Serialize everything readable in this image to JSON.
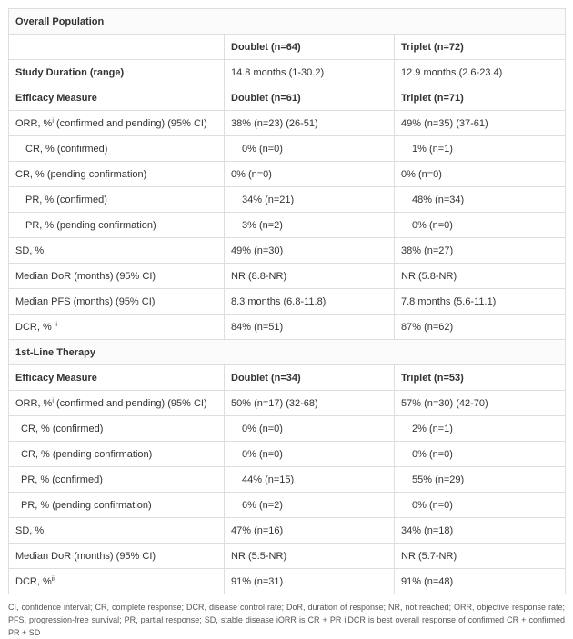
{
  "table": {
    "rows": [
      [
        "Overall Population"
      ],
      [
        "",
        "Doublet (n=64)",
        "Triplet (n=72)"
      ],
      [
        "Study Duration (range)",
        "14.8 months (1-30.2)",
        "12.9 months (2.6-23.4)"
      ],
      [
        "Efficacy Measure",
        "Doublet (n=61)",
        "Triplet (n=71)"
      ],
      [
        {
          "text": "ORR, %",
          "sup": "i",
          "after": " (confirmed and pending)  (95% CI)"
        },
        "38% (n=23) (26-51)",
        "49% (n=35) (37-61)"
      ],
      [
        "CR, % (confirmed)",
        "0% (n=0)",
        "1% (n=1)"
      ],
      [
        "CR, % (pending confirmation)",
        "0% (n=0)",
        "0% (n=0)"
      ],
      [
        "PR, % (confirmed)",
        "34% (n=21)",
        "48% (n=34)"
      ],
      [
        "PR, % (pending confirmation)",
        "3% (n=2)",
        "0% (n=0)"
      ],
      [
        "SD, %",
        "49% (n=30)",
        "38% (n=27)"
      ],
      [
        "Median DoR (months) (95% CI)",
        "NR (8.8-NR)",
        "NR (5.8-NR)"
      ],
      [
        "Median PFS (months) (95% CI)",
        "8.3 months (6.8-11.8)",
        "7.8 months (5.6-11.1)"
      ],
      [
        {
          "text": "DCR, % ",
          "sup": "ii"
        },
        "84% (n=51)",
        "87% (n=62)"
      ],
      [
        "1st-Line Therapy"
      ],
      [
        "Efficacy Measure",
        "Doublet (n=34)",
        "Triplet (n=53)"
      ],
      [
        {
          "text": "ORR, %",
          "sup": "i",
          "after": " (confirmed and pending) (95% CI)"
        },
        "50% (n=17) (32-68)",
        "57% (n=30) (42-70)"
      ],
      [
        "CR, % (confirmed)",
        "0% (n=0)",
        "2% (n=1)"
      ],
      [
        "CR, % (pending confirmation)",
        "0% (n=0)",
        "0% (n=0)"
      ],
      [
        "PR, % (confirmed)",
        "44% (n=15)",
        "55% (n=29)"
      ],
      [
        "PR, % (pending confirmation)",
        "6% (n=2)",
        "0% (n=0)"
      ],
      [
        "SD, %",
        "47% (n=16)",
        "34% (n=18)"
      ],
      [
        "Median DoR (months) (95% CI)",
        "NR (5.5-NR)",
        "NR (5.7-NR)"
      ],
      [
        {
          "text": "DCR, %",
          "sup": "ii"
        },
        "91% (n=31)",
        "91% (n=48)"
      ]
    ]
  },
  "footnote": "CI, confidence interval; CR, complete response; DCR, disease control rate; DoR, duration of response; NR, not reached; ORR, objective response rate; PFS, progression-free survival; PR, partial response; SD, stable disease iORR is CR + PR iiDCR is best overall response of confirmed CR + confirmed PR + SD"
}
